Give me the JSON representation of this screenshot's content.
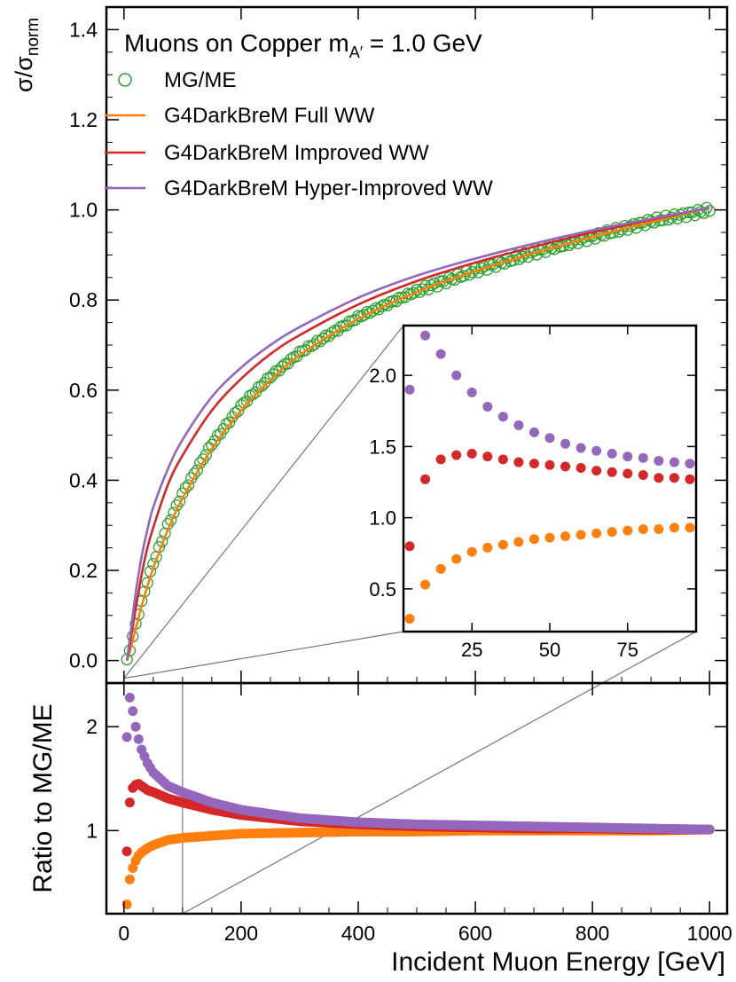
{
  "chart_data": [
    {
      "id": "main",
      "type": "scatter+line",
      "title": "Muons on Copper",
      "title_mass": "m",
      "title_mass_sub": "A′",
      "title_mass_value": " = 1.0 GeV",
      "ylabel_main": "σ/σ",
      "ylabel_sub": "norm",
      "xlim": [
        -30,
        1030
      ],
      "ylim": [
        -0.05,
        1.45
      ],
      "yticks": [
        0.0,
        0.2,
        0.4,
        0.6,
        0.8,
        1.0,
        1.2,
        1.4
      ],
      "ytick_labels": [
        "0.0",
        "0.2",
        "0.4",
        "0.6",
        "0.8",
        "1.0",
        "1.2",
        "1.4"
      ],
      "legend_position": "top-left",
      "series": [
        {
          "key": "mgme",
          "name": "MG/ME",
          "marker": "open-circle",
          "color": "#2ca02c",
          "x": [
            5,
            10,
            20,
            30,
            40,
            50,
            75,
            100,
            150,
            200,
            250,
            300,
            400,
            500,
            600,
            700,
            800,
            900,
            1000
          ],
          "y": [
            0.0,
            0.025,
            0.08,
            0.13,
            0.175,
            0.215,
            0.3,
            0.37,
            0.48,
            0.565,
            0.63,
            0.683,
            0.762,
            0.82,
            0.865,
            0.905,
            0.94,
            0.975,
            1.0
          ]
        },
        {
          "key": "full",
          "name": "G4DarkBreM Full WW",
          "marker": "line",
          "color": "#ff7f0e",
          "x": [
            5,
            10,
            20,
            30,
            40,
            50,
            75,
            100,
            150,
            200,
            250,
            300,
            400,
            500,
            600,
            700,
            800,
            900,
            1000
          ],
          "y": [
            0.0,
            0.02,
            0.07,
            0.12,
            0.165,
            0.205,
            0.29,
            0.36,
            0.47,
            0.555,
            0.622,
            0.678,
            0.758,
            0.818,
            0.864,
            0.904,
            0.94,
            0.973,
            1.005
          ]
        },
        {
          "key": "improved",
          "name": "G4DarkBreM Improved WW",
          "marker": "line",
          "color": "#d62728",
          "x": [
            5,
            10,
            20,
            30,
            40,
            50,
            75,
            100,
            150,
            200,
            250,
            300,
            400,
            500,
            600,
            700,
            800,
            900,
            1000
          ],
          "y": [
            0.0,
            0.035,
            0.115,
            0.19,
            0.25,
            0.295,
            0.39,
            0.455,
            0.555,
            0.625,
            0.68,
            0.722,
            0.79,
            0.842,
            0.883,
            0.918,
            0.95,
            0.978,
            1.005
          ]
        },
        {
          "key": "hyper",
          "name": "G4DarkBreM Hyper-Improved WW",
          "marker": "line",
          "color": "#9467bd",
          "x": [
            5,
            10,
            20,
            30,
            40,
            50,
            75,
            100,
            150,
            200,
            250,
            300,
            400,
            500,
            600,
            700,
            800,
            900,
            1000
          ],
          "y": [
            0.0,
            0.048,
            0.15,
            0.23,
            0.29,
            0.34,
            0.425,
            0.49,
            0.585,
            0.65,
            0.7,
            0.74,
            0.805,
            0.854,
            0.892,
            0.925,
            0.955,
            0.98,
            1.005
          ]
        }
      ]
    },
    {
      "id": "inset",
      "type": "scatter",
      "xlim": [
        3,
        97
      ],
      "ylim": [
        0.2,
        2.35
      ],
      "xticks": [
        25,
        50,
        75
      ],
      "xtick_labels": [
        "25",
        "50",
        "75"
      ],
      "yticks": [
        0.5,
        1.0,
        1.5,
        2.0
      ],
      "ytick_labels": [
        "0.5",
        "1.0",
        "1.5",
        "2.0"
      ],
      "series": [
        {
          "key": "hyper",
          "color": "#9467bd",
          "x": [
            5,
            10,
            15,
            20,
            25,
            30,
            35,
            40,
            45,
            50,
            55,
            60,
            65,
            70,
            75,
            80,
            85,
            90,
            95
          ],
          "y": [
            1.9,
            2.28,
            2.15,
            2.0,
            1.88,
            1.78,
            1.71,
            1.65,
            1.6,
            1.56,
            1.52,
            1.49,
            1.47,
            1.45,
            1.43,
            1.42,
            1.4,
            1.39,
            1.38
          ]
        },
        {
          "key": "improved",
          "color": "#d62728",
          "x": [
            5,
            10,
            15,
            20,
            25,
            30,
            35,
            40,
            45,
            50,
            55,
            60,
            65,
            70,
            75,
            80,
            85,
            90,
            95
          ],
          "y": [
            0.8,
            1.27,
            1.41,
            1.44,
            1.45,
            1.43,
            1.41,
            1.39,
            1.38,
            1.37,
            1.36,
            1.35,
            1.33,
            1.32,
            1.31,
            1.3,
            1.28,
            1.28,
            1.27
          ]
        },
        {
          "key": "full",
          "color": "#ff7f0e",
          "x": [
            5,
            10,
            15,
            20,
            25,
            30,
            35,
            40,
            45,
            50,
            55,
            60,
            65,
            70,
            75,
            80,
            85,
            90,
            95
          ],
          "y": [
            0.29,
            0.53,
            0.64,
            0.71,
            0.76,
            0.79,
            0.81,
            0.83,
            0.85,
            0.86,
            0.87,
            0.88,
            0.89,
            0.9,
            0.91,
            0.92,
            0.92,
            0.93,
            0.93
          ]
        }
      ]
    },
    {
      "id": "ratio",
      "type": "scatter",
      "ylabel": "Ratio to MG/ME",
      "xlabel": "Incident Muon Energy [GeV]",
      "xlim": [
        -30,
        1030
      ],
      "ylim": [
        0.2,
        2.42
      ],
      "xticks": [
        0,
        200,
        400,
        600,
        800,
        1000
      ],
      "xtick_labels": [
        "0",
        "200",
        "400",
        "600",
        "800",
        "1000"
      ],
      "yticks": [
        1,
        2
      ],
      "ytick_labels": [
        "1",
        "2"
      ],
      "zoom_region_x": [
        0,
        100
      ],
      "series": [
        {
          "key": "hyper",
          "color": "#9467bd",
          "x": [
            5,
            10,
            15,
            20,
            25,
            30,
            40,
            50,
            75,
            100,
            150,
            200,
            300,
            400,
            500,
            600,
            700,
            800,
            900,
            1000
          ],
          "y": [
            1.9,
            2.28,
            2.15,
            2.0,
            1.88,
            1.78,
            1.65,
            1.56,
            1.43,
            1.37,
            1.27,
            1.2,
            1.12,
            1.08,
            1.06,
            1.05,
            1.04,
            1.03,
            1.02,
            1.01
          ]
        },
        {
          "key": "improved",
          "color": "#d62728",
          "x": [
            5,
            10,
            15,
            20,
            25,
            30,
            40,
            50,
            75,
            100,
            150,
            200,
            300,
            400,
            500,
            600,
            700,
            800,
            900,
            1000
          ],
          "y": [
            0.8,
            1.27,
            1.41,
            1.44,
            1.45,
            1.43,
            1.39,
            1.37,
            1.31,
            1.27,
            1.2,
            1.15,
            1.09,
            1.06,
            1.04,
            1.03,
            1.02,
            1.02,
            1.01,
            1.01
          ]
        },
        {
          "key": "full",
          "color": "#ff7f0e",
          "x": [
            5,
            10,
            15,
            20,
            25,
            30,
            40,
            50,
            75,
            100,
            150,
            200,
            300,
            400,
            500,
            600,
            700,
            800,
            900,
            1000
          ],
          "y": [
            0.29,
            0.53,
            0.64,
            0.71,
            0.76,
            0.79,
            0.83,
            0.86,
            0.91,
            0.93,
            0.95,
            0.97,
            0.98,
            0.99,
            0.99,
            1.0,
            1.0,
            1.0,
            1.0,
            1.01
          ]
        }
      ]
    }
  ]
}
